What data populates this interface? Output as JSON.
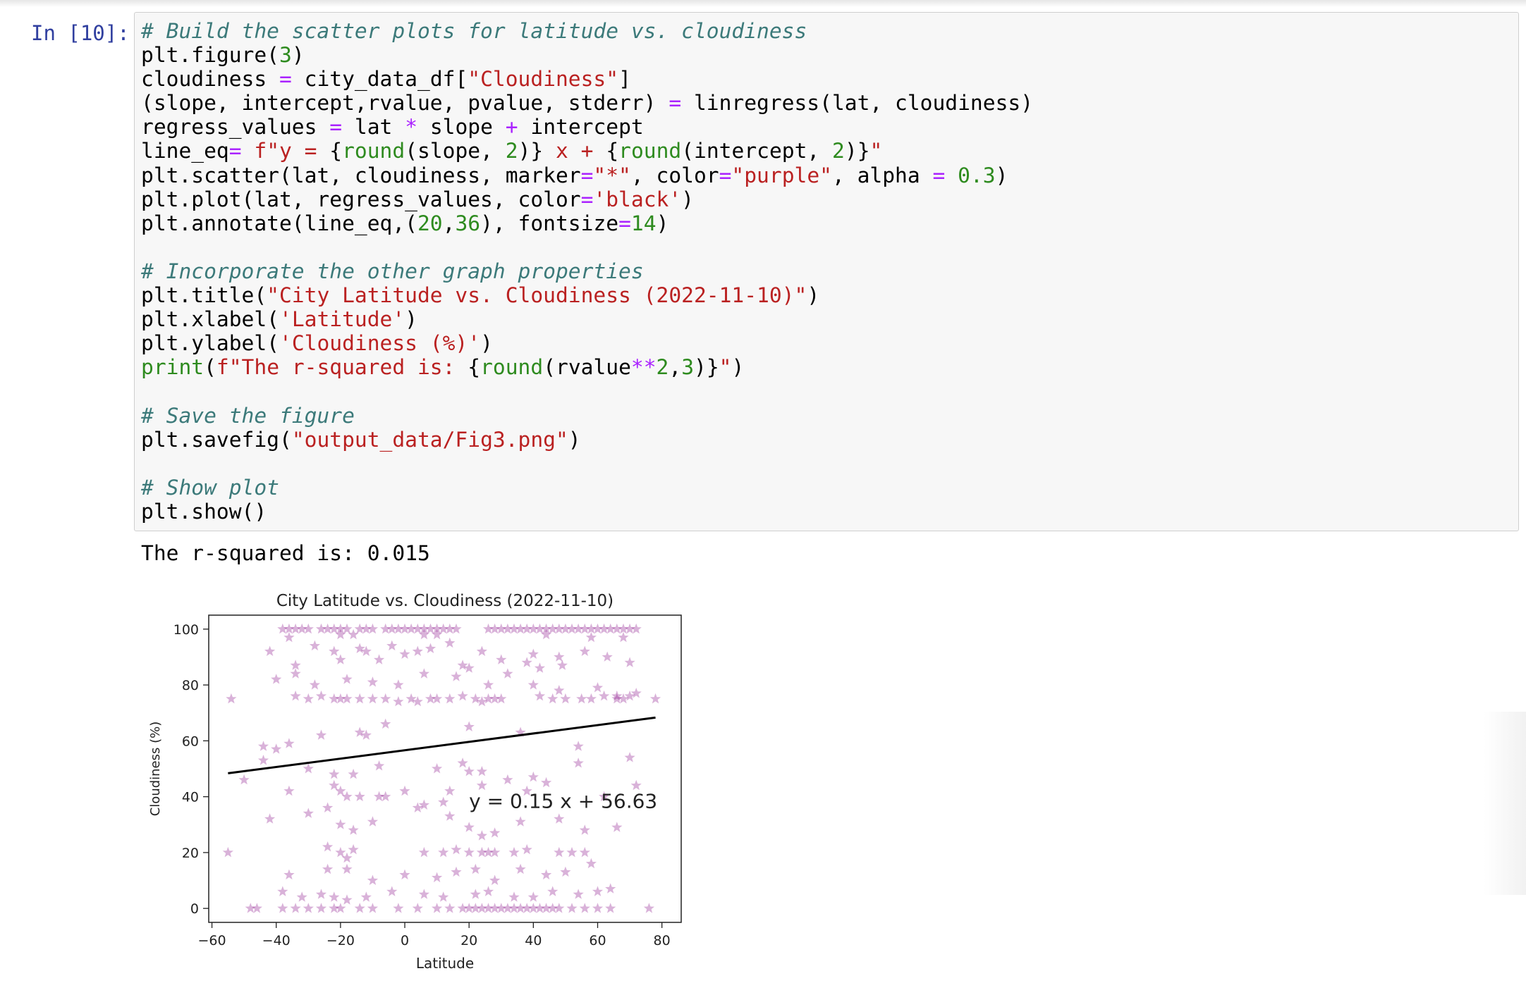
{
  "cell": {
    "prompt": "In [10]:",
    "code_lines": [
      [
        [
          "cm",
          "# Build the scatter plots for latitude vs. cloudiness"
        ]
      ],
      [
        [
          "",
          "plt.figure("
        ],
        [
          "nu",
          "3"
        ],
        [
          "",
          ")"
        ]
      ],
      [
        [
          "",
          "cloudiness "
        ],
        [
          "op",
          "="
        ],
        [
          "",
          " city_data_df["
        ],
        [
          "st",
          "\"Cloudiness\""
        ],
        [
          "",
          "]"
        ]
      ],
      [
        [
          "",
          "(slope, intercept,rvalue, pvalue, stderr) "
        ],
        [
          "op",
          "="
        ],
        [
          "",
          " linregress(lat, cloudiness)"
        ]
      ],
      [
        [
          "",
          "regress_values "
        ],
        [
          "op",
          "="
        ],
        [
          "",
          " lat "
        ],
        [
          "op",
          "*"
        ],
        [
          "",
          " slope "
        ],
        [
          "op",
          "+"
        ],
        [
          "",
          " intercept"
        ]
      ],
      [
        [
          "",
          "line_eq"
        ],
        [
          "op",
          "="
        ],
        [
          "",
          " "
        ],
        [
          "st",
          "f\"y = "
        ],
        [
          "",
          "{"
        ],
        [
          "bi",
          "round"
        ],
        [
          "",
          "(slope, "
        ],
        [
          "nu",
          "2"
        ],
        [
          "",
          ")}"
        ],
        [
          "st",
          " x + "
        ],
        [
          "",
          "{"
        ],
        [
          "bi",
          "round"
        ],
        [
          "",
          "(intercept, "
        ],
        [
          "nu",
          "2"
        ],
        [
          "",
          ")}"
        ],
        [
          "st",
          "\""
        ]
      ],
      [
        [
          "",
          "plt.scatter(lat, cloudiness, marker"
        ],
        [
          "op",
          "="
        ],
        [
          "st",
          "\"*\""
        ],
        [
          "",
          ", color"
        ],
        [
          "op",
          "="
        ],
        [
          "st",
          "\"purple\""
        ],
        [
          "",
          ", alpha "
        ],
        [
          "op",
          "="
        ],
        [
          "",
          " "
        ],
        [
          "nu",
          "0.3"
        ],
        [
          "",
          ")"
        ]
      ],
      [
        [
          "",
          "plt.plot(lat, regress_values, color"
        ],
        [
          "op",
          "="
        ],
        [
          "st",
          "'black'"
        ],
        [
          "",
          ")"
        ]
      ],
      [
        [
          "",
          "plt.annotate(line_eq,("
        ],
        [
          "nu",
          "20"
        ],
        [
          "",
          ","
        ],
        [
          "nu",
          "36"
        ],
        [
          "",
          "), fontsize"
        ],
        [
          "op",
          "="
        ],
        [
          "nu",
          "14"
        ],
        [
          "",
          ")"
        ]
      ],
      [],
      [
        [
          "cm",
          "# Incorporate the other graph properties"
        ]
      ],
      [
        [
          "",
          "plt.title("
        ],
        [
          "st",
          "\"City Latitude vs. Cloudiness (2022-11-10)\""
        ],
        [
          "",
          ")"
        ]
      ],
      [
        [
          "",
          "plt.xlabel("
        ],
        [
          "st",
          "'Latitude'"
        ],
        [
          "",
          ")"
        ]
      ],
      [
        [
          "",
          "plt.ylabel("
        ],
        [
          "st",
          "'Cloudiness (%)'"
        ],
        [
          "",
          ")"
        ]
      ],
      [
        [
          "bi",
          "print"
        ],
        [
          "",
          "("
        ],
        [
          "st",
          "f\"The r-squared is: "
        ],
        [
          "",
          "{"
        ],
        [
          "bi",
          "round"
        ],
        [
          "",
          "(rvalue"
        ],
        [
          "op",
          "**"
        ],
        [
          "nu",
          "2"
        ],
        [
          "",
          ","
        ],
        [
          "nu",
          "3"
        ],
        [
          "",
          ")}"
        ],
        [
          "st",
          "\""
        ],
        [
          "",
          ")"
        ]
      ],
      [],
      [
        [
          "cm",
          "# Save the figure"
        ]
      ],
      [
        [
          "",
          "plt.savefig("
        ],
        [
          "st",
          "\"output_data/Fig3.png\""
        ],
        [
          "",
          ")"
        ]
      ],
      [],
      [
        [
          "cm",
          "# Show plot"
        ]
      ],
      [
        [
          "",
          "plt.show()"
        ]
      ]
    ],
    "output_text": "The r-squared is: 0.015"
  },
  "chart_data": {
    "type": "scatter",
    "title": "City Latitude vs. Cloudiness (2022-11-10)",
    "xlabel": "Latitude",
    "ylabel": "Cloudiness (%)",
    "xlim": [
      -61,
      86
    ],
    "ylim": [
      -5,
      105
    ],
    "xticks": [
      -60,
      -40,
      -20,
      0,
      20,
      40,
      60,
      80
    ],
    "yticks": [
      0,
      20,
      40,
      60,
      80,
      100
    ],
    "marker": "star",
    "color": "#800080",
    "alpha": 0.3,
    "grid": false,
    "regression": {
      "slope": 0.15,
      "intercept": 56.63,
      "x_range": [
        -55,
        78
      ],
      "color": "#000000"
    },
    "annotation": {
      "text": "y = 0.15 x + 56.63",
      "x": 20,
      "y": 36
    },
    "points": [
      [
        -38,
        100
      ],
      [
        -36,
        100
      ],
      [
        -34,
        100
      ],
      [
        -32,
        100
      ],
      [
        -30,
        100
      ],
      [
        -26,
        100
      ],
      [
        -24,
        100
      ],
      [
        -22,
        100
      ],
      [
        -20,
        100
      ],
      [
        -18,
        100
      ],
      [
        -14,
        100
      ],
      [
        -12,
        100
      ],
      [
        -10,
        100
      ],
      [
        -6,
        100
      ],
      [
        -4,
        100
      ],
      [
        -2,
        100
      ],
      [
        0,
        100
      ],
      [
        2,
        100
      ],
      [
        4,
        100
      ],
      [
        6,
        100
      ],
      [
        8,
        100
      ],
      [
        10,
        100
      ],
      [
        12,
        100
      ],
      [
        14,
        100
      ],
      [
        16,
        100
      ],
      [
        26,
        100
      ],
      [
        28,
        100
      ],
      [
        30,
        100
      ],
      [
        32,
        100
      ],
      [
        34,
        100
      ],
      [
        36,
        100
      ],
      [
        38,
        100
      ],
      [
        40,
        100
      ],
      [
        42,
        100
      ],
      [
        44,
        100
      ],
      [
        46,
        100
      ],
      [
        48,
        100
      ],
      [
        50,
        100
      ],
      [
        52,
        100
      ],
      [
        54,
        100
      ],
      [
        56,
        100
      ],
      [
        58,
        100
      ],
      [
        60,
        100
      ],
      [
        62,
        100
      ],
      [
        64,
        100
      ],
      [
        66,
        100
      ],
      [
        68,
        100
      ],
      [
        70,
        100
      ],
      [
        72,
        100
      ],
      [
        -36,
        97
      ],
      [
        -20,
        98
      ],
      [
        -16,
        98
      ],
      [
        6,
        98
      ],
      [
        10,
        98
      ],
      [
        44,
        98
      ],
      [
        58,
        97
      ],
      [
        68,
        97
      ],
      [
        -42,
        92
      ],
      [
        -28,
        94
      ],
      [
        -22,
        92
      ],
      [
        -14,
        93
      ],
      [
        -12,
        92
      ],
      [
        -4,
        94
      ],
      [
        4,
        92
      ],
      [
        8,
        93
      ],
      [
        14,
        95
      ],
      [
        24,
        92
      ],
      [
        40,
        91
      ],
      [
        48,
        90
      ],
      [
        56,
        92
      ],
      [
        63,
        90
      ],
      [
        -34,
        87
      ],
      [
        -20,
        89
      ],
      [
        -8,
        89
      ],
      [
        0,
        91
      ],
      [
        18,
        87
      ],
      [
        30,
        89
      ],
      [
        38,
        88
      ],
      [
        42,
        86
      ],
      [
        49,
        87
      ],
      [
        70,
        88
      ],
      [
        -54,
        75
      ],
      [
        -34,
        76
      ],
      [
        -30,
        75
      ],
      [
        -26,
        76
      ],
      [
        -22,
        75
      ],
      [
        -20,
        75
      ],
      [
        -18,
        75
      ],
      [
        -14,
        75
      ],
      [
        -10,
        75
      ],
      [
        -6,
        75
      ],
      [
        -2,
        74
      ],
      [
        2,
        75
      ],
      [
        4,
        74
      ],
      [
        8,
        75
      ],
      [
        10,
        75
      ],
      [
        14,
        75
      ],
      [
        18,
        76
      ],
      [
        22,
        75
      ],
      [
        24,
        74
      ],
      [
        26,
        75
      ],
      [
        28,
        75
      ],
      [
        30,
        75
      ],
      [
        42,
        76
      ],
      [
        46,
        75
      ],
      [
        50,
        75
      ],
      [
        55,
        75
      ],
      [
        58,
        75
      ],
      [
        62,
        76
      ],
      [
        66,
        75
      ],
      [
        68,
        75
      ],
      [
        70,
        76
      ],
      [
        72,
        77
      ],
      [
        78,
        75
      ],
      [
        -40,
        82
      ],
      [
        -34,
        84
      ],
      [
        -28,
        80
      ],
      [
        -18,
        82
      ],
      [
        -10,
        81
      ],
      [
        -2,
        80
      ],
      [
        6,
        84
      ],
      [
        16,
        83
      ],
      [
        20,
        86
      ],
      [
        26,
        80
      ],
      [
        32,
        84
      ],
      [
        40,
        80
      ],
      [
        48,
        78
      ],
      [
        60,
        79
      ],
      [
        66,
        76
      ],
      [
        -44,
        58
      ],
      [
        -40,
        57
      ],
      [
        -36,
        59
      ],
      [
        -26,
        62
      ],
      [
        -14,
        63
      ],
      [
        -12,
        62
      ],
      [
        -6,
        66
      ],
      [
        20,
        65
      ],
      [
        36,
        63
      ],
      [
        54,
        58
      ],
      [
        -44,
        53
      ],
      [
        -30,
        50
      ],
      [
        -22,
        48
      ],
      [
        -16,
        48
      ],
      [
        -8,
        51
      ],
      [
        10,
        50
      ],
      [
        18,
        52
      ],
      [
        20,
        49
      ],
      [
        24,
        49
      ],
      [
        40,
        47
      ],
      [
        54,
        52
      ],
      [
        70,
        54
      ],
      [
        -50,
        46
      ],
      [
        -36,
        42
      ],
      [
        -22,
        44
      ],
      [
        -20,
        42
      ],
      [
        -18,
        40
      ],
      [
        -14,
        40
      ],
      [
        -8,
        40
      ],
      [
        -6,
        40
      ],
      [
        0,
        42
      ],
      [
        6,
        37
      ],
      [
        12,
        38
      ],
      [
        14,
        42
      ],
      [
        24,
        44
      ],
      [
        32,
        46
      ],
      [
        38,
        42
      ],
      [
        44,
        45
      ],
      [
        62,
        40
      ],
      [
        72,
        44
      ],
      [
        -42,
        32
      ],
      [
        -30,
        34
      ],
      [
        -24,
        36
      ],
      [
        -20,
        30
      ],
      [
        -16,
        28
      ],
      [
        -10,
        31
      ],
      [
        4,
        36
      ],
      [
        14,
        33
      ],
      [
        20,
        29
      ],
      [
        24,
        26
      ],
      [
        28,
        27
      ],
      [
        36,
        31
      ],
      [
        48,
        32
      ],
      [
        56,
        28
      ],
      [
        66,
        29
      ],
      [
        -55,
        20
      ],
      [
        -24,
        22
      ],
      [
        -20,
        20
      ],
      [
        -18,
        18
      ],
      [
        -16,
        21
      ],
      [
        6,
        20
      ],
      [
        12,
        20
      ],
      [
        16,
        21
      ],
      [
        20,
        20
      ],
      [
        24,
        20
      ],
      [
        26,
        20
      ],
      [
        28,
        20
      ],
      [
        34,
        20
      ],
      [
        38,
        21
      ],
      [
        48,
        20
      ],
      [
        52,
        20
      ],
      [
        56,
        20
      ],
      [
        -36,
        12
      ],
      [
        -24,
        14
      ],
      [
        -18,
        14
      ],
      [
        -10,
        10
      ],
      [
        0,
        12
      ],
      [
        10,
        11
      ],
      [
        16,
        13
      ],
      [
        22,
        14
      ],
      [
        28,
        10
      ],
      [
        36,
        14
      ],
      [
        44,
        12
      ],
      [
        50,
        13
      ],
      [
        58,
        16
      ],
      [
        -38,
        6
      ],
      [
        -32,
        4
      ],
      [
        -26,
        5
      ],
      [
        -22,
        4
      ],
      [
        -18,
        3
      ],
      [
        -12,
        4
      ],
      [
        -4,
        6
      ],
      [
        6,
        5
      ],
      [
        12,
        4
      ],
      [
        22,
        5
      ],
      [
        26,
        6
      ],
      [
        34,
        4
      ],
      [
        40,
        4
      ],
      [
        46,
        6
      ],
      [
        54,
        5
      ],
      [
        60,
        6
      ],
      [
        64,
        7
      ],
      [
        -48,
        0
      ],
      [
        -46,
        0
      ],
      [
        -38,
        0
      ],
      [
        -34,
        0
      ],
      [
        -30,
        0
      ],
      [
        -26,
        0
      ],
      [
        -22,
        0
      ],
      [
        -20,
        0
      ],
      [
        -14,
        0
      ],
      [
        -10,
        0
      ],
      [
        -2,
        0
      ],
      [
        4,
        0
      ],
      [
        10,
        0
      ],
      [
        14,
        0
      ],
      [
        18,
        0
      ],
      [
        20,
        0
      ],
      [
        22,
        0
      ],
      [
        24,
        0
      ],
      [
        26,
        0
      ],
      [
        28,
        0
      ],
      [
        30,
        0
      ],
      [
        32,
        0
      ],
      [
        34,
        0
      ],
      [
        36,
        0
      ],
      [
        38,
        0
      ],
      [
        40,
        0
      ],
      [
        42,
        0
      ],
      [
        44,
        0
      ],
      [
        46,
        0
      ],
      [
        48,
        0
      ],
      [
        52,
        0
      ],
      [
        56,
        0
      ],
      [
        60,
        0
      ],
      [
        64,
        0
      ],
      [
        76,
        0
      ]
    ]
  }
}
